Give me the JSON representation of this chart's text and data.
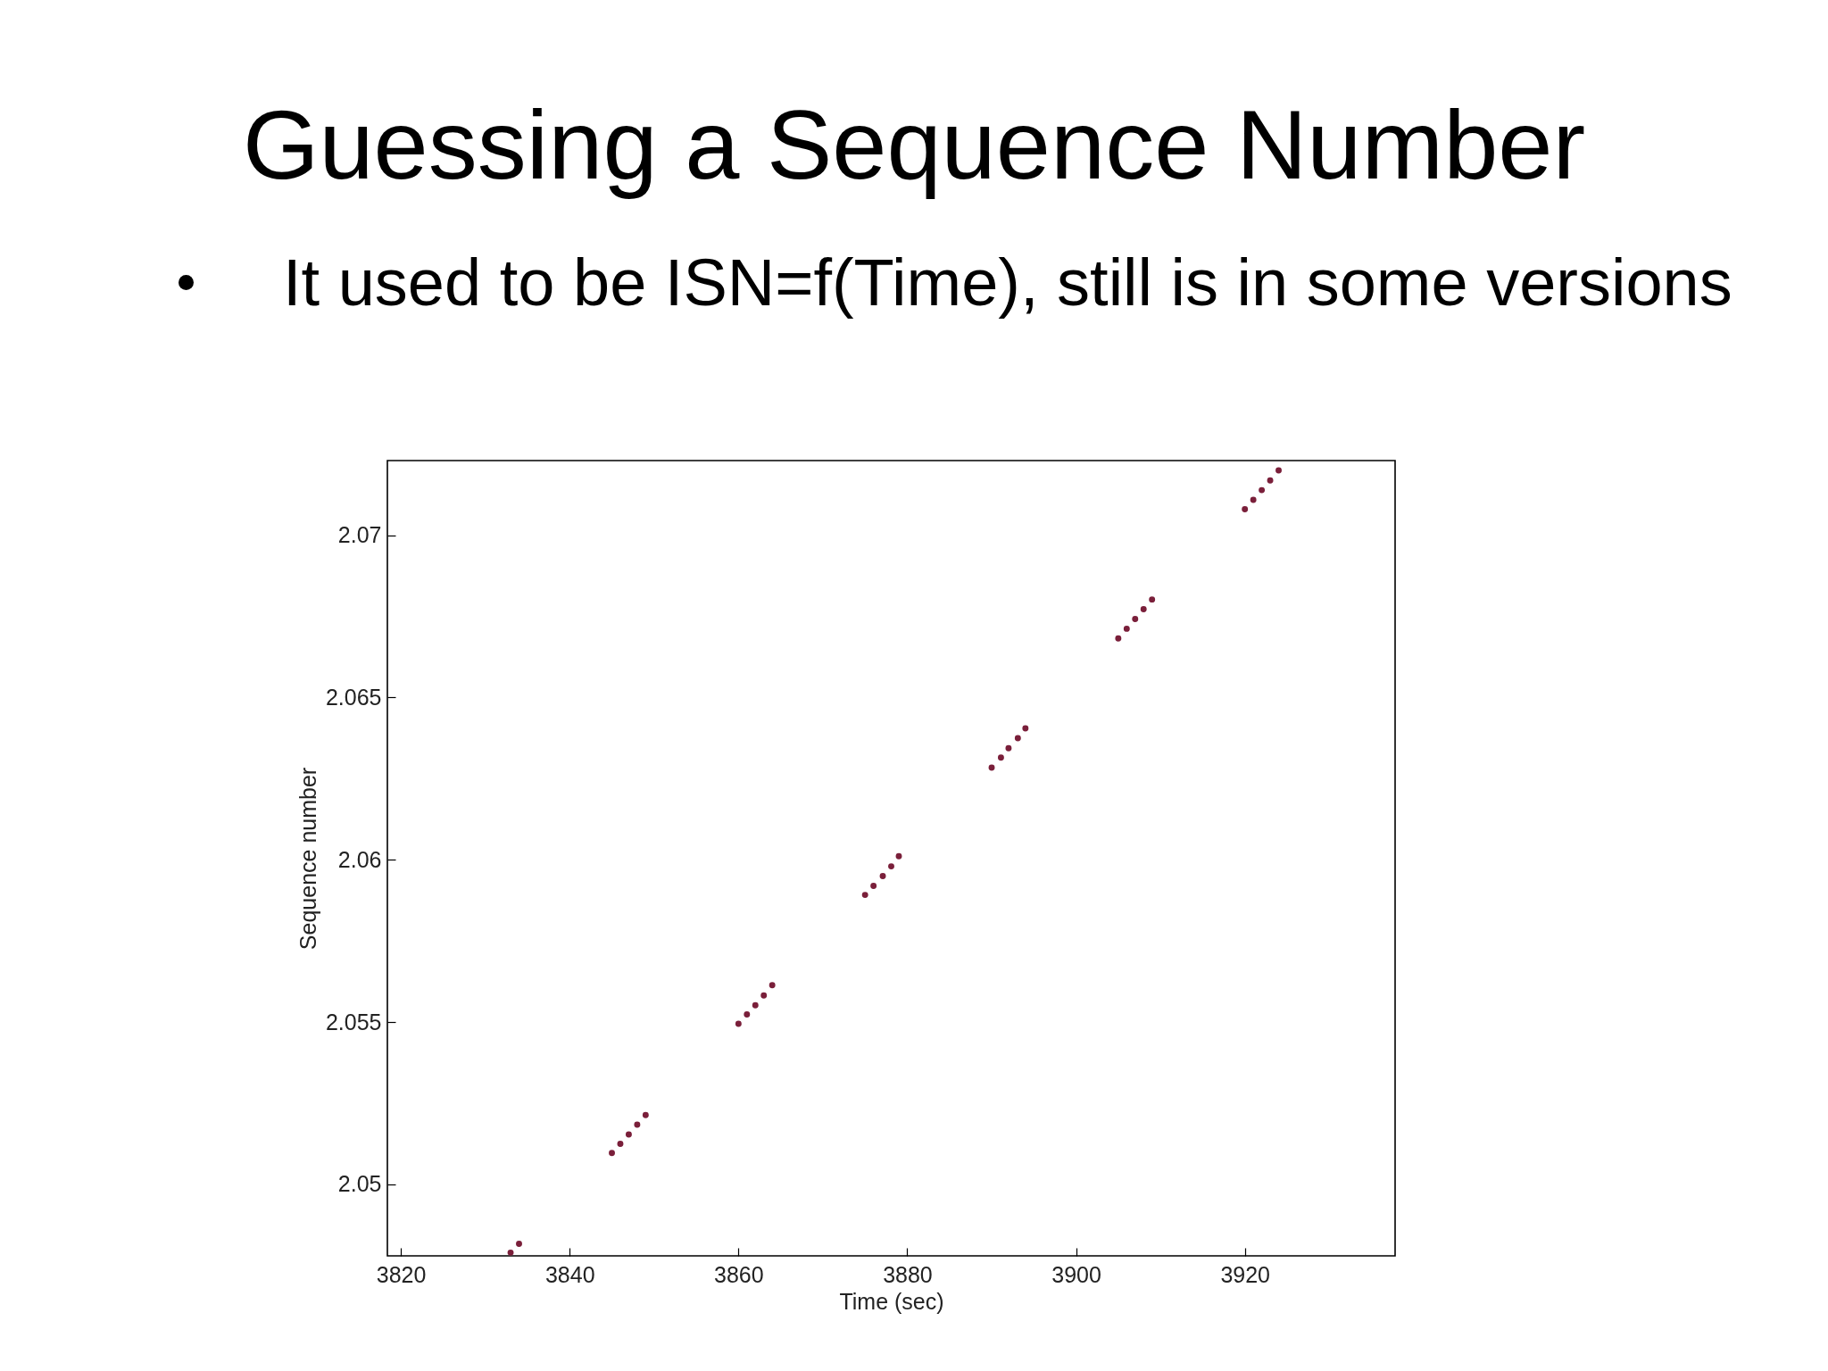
{
  "chart_data": {
    "type": "scatter",
    "title": "Guessing a Sequence Number",
    "subtitle": "It used to be ISN=f(Time), still is in some versions",
    "xlabel": "Time (sec)",
    "ylabel": "Sequence number",
    "x": [
      3833.0,
      3834.0,
      3845.0,
      3846.0,
      3847.0,
      3848.0,
      3849.0,
      3860.0,
      3861.0,
      3862.0,
      3863.0,
      3864.0,
      3875.0,
      3876.0,
      3877.1,
      3878.1,
      3879.0,
      3890.0,
      3891.1,
      3892.0,
      3893.1,
      3894.0,
      3905.0,
      3906.0,
      3907.0,
      3908.0,
      3909.0,
      3920.0,
      3921.0,
      3922.0,
      3923.0,
      3924.0
    ],
    "values": [
      2.0479,
      2.04817,
      2.05097,
      2.05125,
      2.05154,
      2.05184,
      2.05214,
      2.05495,
      2.05524,
      2.05552,
      2.05582,
      2.05614,
      2.05892,
      2.0592,
      2.0595,
      2.0598,
      2.06011,
      2.06284,
      2.06315,
      2.06344,
      2.06375,
      2.06405,
      2.06682,
      2.06712,
      2.06742,
      2.06772,
      2.06802,
      2.0708,
      2.07109,
      2.07139,
      2.07169,
      2.072
    ],
    "color": "#7a1f3a",
    "marker": "circle",
    "xlim": [
      3818.4,
      3937.8
    ],
    "ylim": [
      2.0478,
      2.0723
    ],
    "xticks": [
      3820,
      3840,
      3860,
      3880,
      3900,
      3920
    ],
    "yticks": [
      2.05,
      2.055,
      2.06,
      2.065,
      2.07
    ]
  }
}
